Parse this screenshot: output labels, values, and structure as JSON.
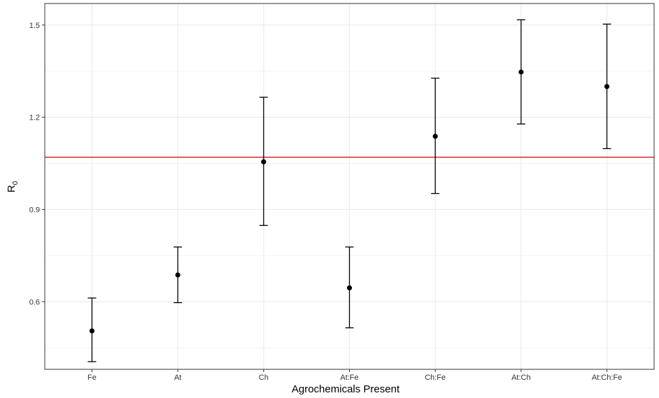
{
  "chart_data": {
    "type": "scatter",
    "categories": [
      "Fe",
      "At",
      "Ch",
      "At:Fe",
      "Ch:Fe",
      "At:Ch",
      "At:Ch:Fe"
    ],
    "series": [
      {
        "estimate": [
          0.505,
          0.687,
          1.055,
          0.645,
          1.138,
          1.347,
          1.3
        ],
        "lower": [
          0.405,
          0.597,
          0.848,
          0.515,
          0.952,
          1.178,
          1.098
        ],
        "upper": [
          0.612,
          0.778,
          1.265,
          0.778,
          1.327,
          1.517,
          1.503
        ]
      }
    ],
    "reference_line": {
      "y": 1.07,
      "color": "#cc0000"
    },
    "xlabel": "Agrochemicals Present",
    "ylabel": {
      "main": "R",
      "subscript": "0"
    },
    "yticks": [
      "0.6",
      "0.9",
      "1.2",
      "1.5"
    ],
    "ylim": [
      0.38,
      1.57
    ],
    "grid": true,
    "colors": {
      "points": "#000000",
      "grid": "#ebebeb",
      "panel_border": "#333333"
    }
  }
}
